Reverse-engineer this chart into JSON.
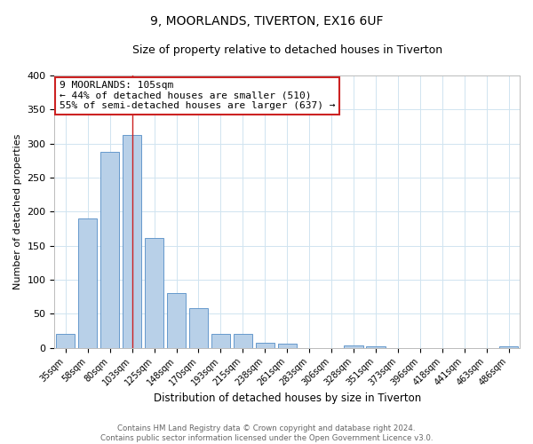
{
  "title": "9, MOORLANDS, TIVERTON, EX16 6UF",
  "subtitle": "Size of property relative to detached houses in Tiverton",
  "xlabel": "Distribution of detached houses by size in Tiverton",
  "ylabel": "Number of detached properties",
  "bar_labels": [
    "35sqm",
    "58sqm",
    "80sqm",
    "103sqm",
    "125sqm",
    "148sqm",
    "170sqm",
    "193sqm",
    "215sqm",
    "238sqm",
    "261sqm",
    "283sqm",
    "306sqm",
    "328sqm",
    "351sqm",
    "373sqm",
    "396sqm",
    "418sqm",
    "441sqm",
    "463sqm",
    "486sqm"
  ],
  "bar_values": [
    20,
    190,
    288,
    312,
    162,
    80,
    58,
    20,
    20,
    8,
    6,
    0,
    0,
    4,
    3,
    0,
    0,
    0,
    0,
    0,
    2
  ],
  "bar_color": "#b8d0e8",
  "bar_edge_color": "#6699cc",
  "annotation_line1": "9 MOORLANDS: 105sqm",
  "annotation_line2": "← 44% of detached houses are smaller (510)",
  "annotation_line3": "55% of semi-detached houses are larger (637) →",
  "annotation_box_edge_color": "#cc2222",
  "marker_line_color": "#cc2222",
  "ylim": [
    0,
    400
  ],
  "yticks": [
    0,
    50,
    100,
    150,
    200,
    250,
    300,
    350,
    400
  ],
  "footnote_line1": "Contains HM Land Registry data © Crown copyright and database right 2024.",
  "footnote_line2": "Contains public sector information licensed under the Open Government Licence v3.0.",
  "property_bar_index": 3,
  "figsize": [
    6.0,
    5.0
  ],
  "dpi": 100,
  "grid_color": "#d0e4f0",
  "title_fontsize": 10,
  "subtitle_fontsize": 9
}
